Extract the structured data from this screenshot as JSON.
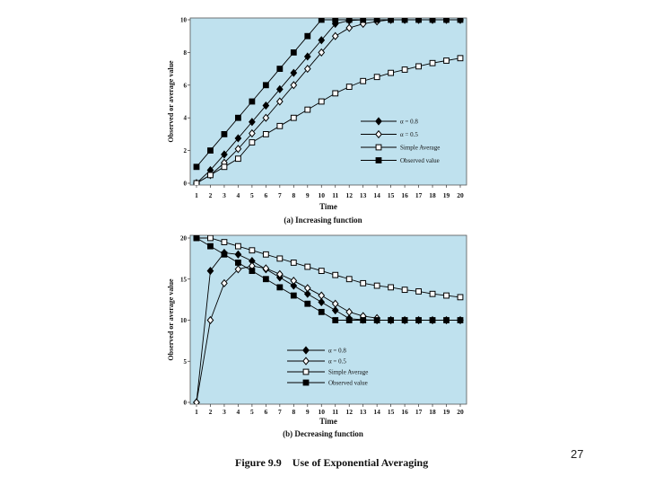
{
  "slide": {
    "page_number": "27",
    "figure_label": "Figure 9.9",
    "figure_title": "Use of Exponential Averaging"
  },
  "colors": {
    "plot_background": "#bfe1ee",
    "series_line": "#000000"
  },
  "chart_data": [
    {
      "type": "line",
      "title": "(a) Increasing function",
      "xlabel": "Time",
      "ylabel": "Observed or average value",
      "x": [
        1,
        2,
        3,
        4,
        5,
        6,
        7,
        8,
        9,
        10,
        11,
        12,
        13,
        14,
        15,
        16,
        17,
        18,
        19,
        20
      ],
      "xlim": [
        1,
        20
      ],
      "ylim": [
        0,
        10
      ],
      "yticks": [
        0,
        2,
        4,
        6,
        8,
        10
      ],
      "legend_position": "right",
      "series": [
        {
          "name": "α = 0.8",
          "marker": "filled-diamond",
          "values": [
            0,
            0.8,
            1.76,
            2.75,
            3.75,
            4.75,
            5.75,
            6.75,
            7.75,
            8.75,
            9.75,
            9.95,
            10,
            10,
            10,
            10,
            10,
            10,
            10,
            10
          ]
        },
        {
          "name": "α = 0.5",
          "marker": "open-diamond",
          "values": [
            0,
            0.5,
            1.25,
            2.1,
            3.05,
            4.0,
            5.0,
            6.0,
            7.0,
            8.0,
            9.0,
            9.5,
            9.75,
            9.9,
            10,
            10,
            10,
            10,
            10,
            10
          ]
        },
        {
          "name": "Simple Average",
          "marker": "open-square",
          "values": [
            0,
            0.5,
            1.0,
            1.5,
            2.5,
            3.0,
            3.5,
            4.0,
            4.5,
            5.0,
            5.5,
            5.9,
            6.25,
            6.5,
            6.75,
            6.95,
            7.15,
            7.35,
            7.5,
            7.65
          ]
        },
        {
          "name": "Observed value",
          "marker": "filled-square",
          "values": [
            1,
            2,
            3,
            4,
            5,
            6,
            7,
            8,
            9,
            10,
            10,
            10,
            10,
            10,
            10,
            10,
            10,
            10,
            10,
            10
          ]
        }
      ]
    },
    {
      "type": "line",
      "title": "(b) Decreasing function",
      "xlabel": "Time",
      "ylabel": "Observed or average value",
      "x": [
        1,
        2,
        3,
        4,
        5,
        6,
        7,
        8,
        9,
        10,
        11,
        12,
        13,
        14,
        15,
        16,
        17,
        18,
        19,
        20
      ],
      "xlim": [
        1,
        20
      ],
      "ylim": [
        0,
        20
      ],
      "yticks": [
        0,
        5,
        10,
        15,
        20
      ],
      "legend_position": "bottom-center",
      "series": [
        {
          "name": "α = 0.8",
          "marker": "filled-diamond",
          "values": [
            0,
            16,
            18.2,
            18.0,
            17.2,
            16.2,
            15.2,
            14.2,
            13.2,
            12.2,
            11.2,
            10.2,
            10.05,
            10,
            10,
            10,
            10,
            10,
            10,
            10
          ]
        },
        {
          "name": "α = 0.5",
          "marker": "open-diamond",
          "values": [
            0,
            10,
            14.5,
            16.2,
            16.6,
            16.3,
            15.6,
            14.8,
            13.9,
            13.0,
            12.0,
            11.0,
            10.5,
            10.25,
            null,
            null,
            null,
            null,
            null,
            null
          ]
        },
        {
          "name": "Simple Average",
          "marker": "open-square",
          "values": [
            20,
            20,
            19.5,
            19,
            18.5,
            18,
            17.5,
            17,
            16.5,
            16,
            15.5,
            15,
            14.5,
            14.2,
            14,
            13.7,
            13.5,
            13.2,
            13,
            12.8
          ]
        },
        {
          "name": "Observed value",
          "marker": "filled-square",
          "values": [
            20,
            19,
            18,
            17,
            16,
            15,
            14,
            13,
            12,
            11,
            10,
            10,
            10,
            10,
            10,
            10,
            10,
            10,
            10,
            10
          ]
        }
      ]
    }
  ]
}
